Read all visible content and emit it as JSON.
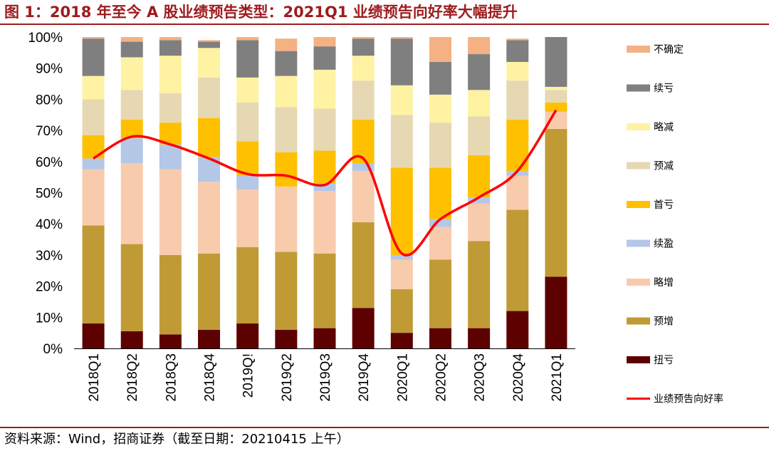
{
  "title": "图 1：2018 年至今 A 股业绩预告类型：2021Q1 业绩预告向好率大幅提升",
  "source": "资料来源：Wind，招商证券（截至日期：20210415 上午）",
  "chart_data": {
    "type": "bar",
    "stacked": true,
    "categories": [
      "2018Q1",
      "2018Q2",
      "2018Q3",
      "2018Q4",
      "2019Q!",
      "2019Q2",
      "2019Q3",
      "2019Q4",
      "2020Q1",
      "2020Q2",
      "2020Q3",
      "2020Q4",
      "2021Q1"
    ],
    "ylim": [
      0,
      100
    ],
    "yticks": [
      "0%",
      "10%",
      "20%",
      "30%",
      "40%",
      "50%",
      "60%",
      "70%",
      "80%",
      "90%",
      "100%"
    ],
    "legend_position": "right",
    "series": [
      {
        "name": "扭亏",
        "color": "#5c0000",
        "values": [
          8,
          5.5,
          4.5,
          6,
          8,
          6,
          6.5,
          13,
          5,
          6.5,
          6.5,
          12,
          23
        ]
      },
      {
        "name": "预增",
        "color": "#c09b35",
        "values": [
          31.5,
          28,
          25.5,
          24.5,
          24.5,
          25,
          24,
          27.5,
          14,
          22,
          28,
          32.5,
          47.5
        ]
      },
      {
        "name": "略增",
        "color": "#f8cbad",
        "values": [
          18,
          26,
          27.5,
          23,
          18.5,
          21,
          20,
          16.5,
          9.5,
          10.5,
          12,
          11,
          5.5
        ]
      },
      {
        "name": "续盈",
        "color": "#b4c7e7",
        "values": [
          3.5,
          8,
          8,
          8,
          4.5,
          0,
          2.5,
          2.5,
          1.5,
          2.5,
          2,
          1.5,
          0
        ]
      },
      {
        "name": "首亏",
        "color": "#ffc000",
        "values": [
          7.5,
          6,
          7,
          12.5,
          11,
          11,
          10.5,
          14,
          28,
          16.5,
          13.5,
          16.5,
          3
        ]
      },
      {
        "name": "预减",
        "color": "#e6d8b2",
        "values": [
          11.5,
          9.5,
          9.5,
          13,
          12.5,
          14.5,
          13.5,
          12.5,
          17,
          14.5,
          12.5,
          12.5,
          4
        ]
      },
      {
        "name": "略减",
        "color": "#fff2a3",
        "values": [
          7.5,
          10.5,
          12,
          9.5,
          8,
          10,
          12.5,
          8,
          9.5,
          9,
          8.5,
          6,
          1
        ]
      },
      {
        "name": "续亏",
        "color": "#7f7f7f",
        "values": [
          12,
          5,
          5,
          2,
          12,
          8,
          7.5,
          5.5,
          15,
          10.5,
          11.5,
          7,
          16
        ]
      },
      {
        "name": "不确定",
        "color": "#f4b183",
        "values": [
          0.5,
          1.5,
          1,
          0.5,
          1,
          4,
          3,
          0.5,
          0.5,
          8,
          5.5,
          0.5,
          0
        ]
      }
    ],
    "line": {
      "name": "业绩预告向好率",
      "color": "#ff0000",
      "values": [
        61,
        68,
        65.5,
        61,
        56,
        55.5,
        52.5,
        61,
        30.5,
        41.5,
        48.5,
        57,
        76.5
      ]
    }
  }
}
